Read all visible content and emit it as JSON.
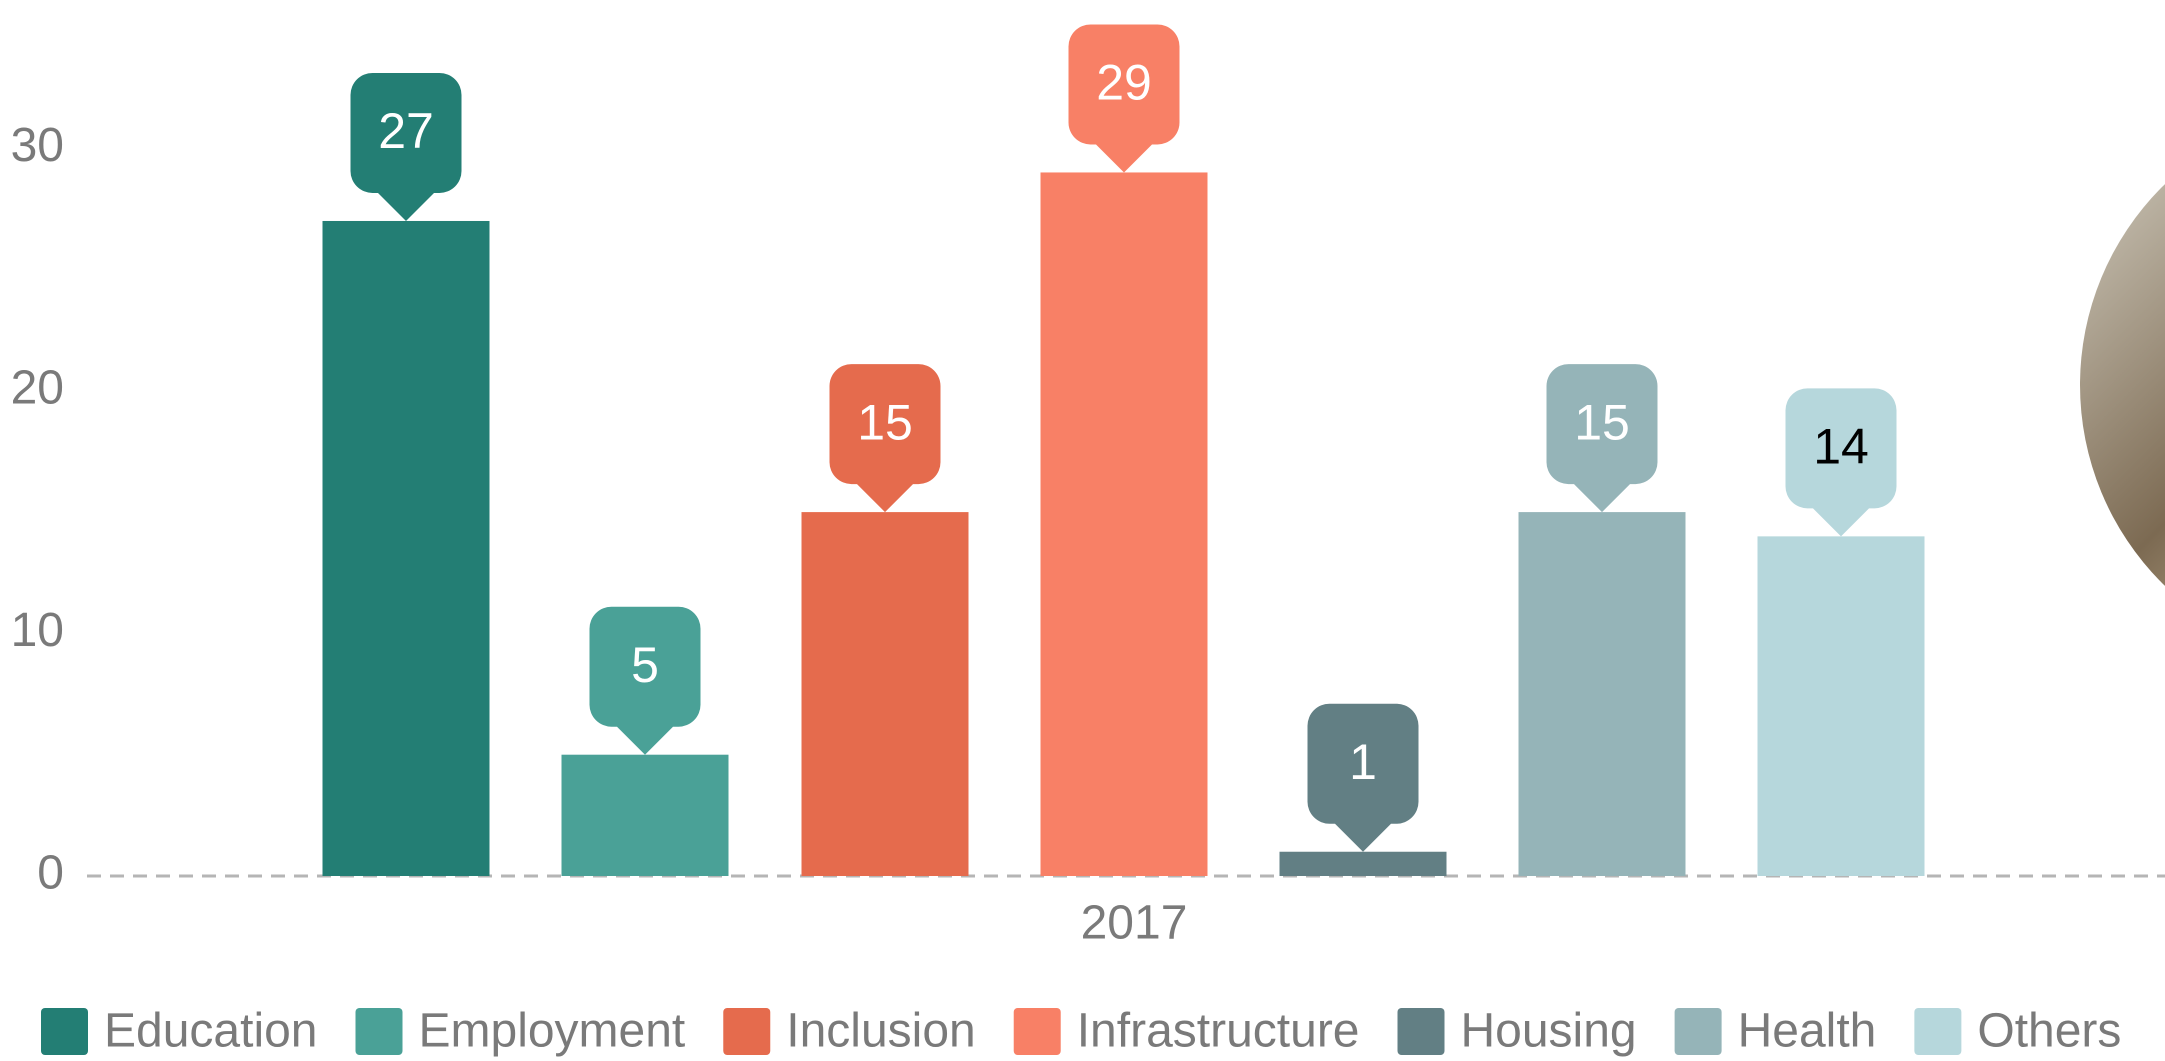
{
  "chart_data": {
    "type": "bar",
    "categories": [
      "2017"
    ],
    "series": [
      {
        "name": "Education",
        "color": "#237e74",
        "values": [
          27
        ]
      },
      {
        "name": "Employment",
        "color": "#4aa197",
        "values": [
          5
        ]
      },
      {
        "name": "Inclusion",
        "color": "#e56b4d",
        "values": [
          15
        ]
      },
      {
        "name": "Infrastructure",
        "color": "#f88066",
        "values": [
          29
        ]
      },
      {
        "name": "Housing",
        "color": "#627f84",
        "values": [
          1
        ]
      },
      {
        "name": "Health",
        "color": "#95b4b8",
        "values": [
          15
        ]
      },
      {
        "name": "Others",
        "color": "#b6d7dc",
        "values": [
          14
        ]
      }
    ],
    "ylim": [
      0,
      36
    ],
    "yticks": [
      0,
      10,
      20,
      30
    ],
    "grid": false,
    "legend": "bottom"
  }
}
